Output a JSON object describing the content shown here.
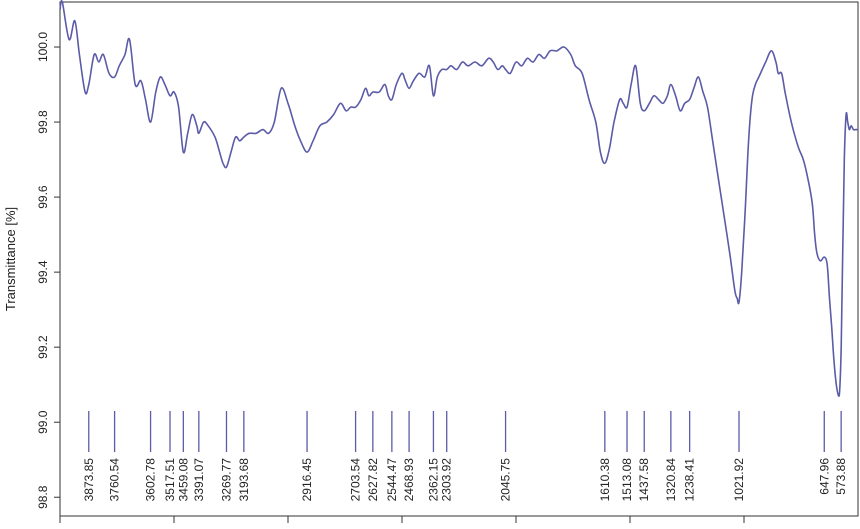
{
  "chart_data": {
    "type": "line",
    "ylabel": "Transmittance [%]",
    "xlabel": "",
    "x_reversed": true,
    "xlim": [
      4000,
      500
    ],
    "ylim": [
      98.75,
      100.12
    ],
    "y_ticks": [
      "98.8",
      "99.0",
      "99.2",
      "99.4",
      "99.6",
      "99.8",
      "100.0"
    ],
    "grid": false,
    "line_color": "#5b5ba8",
    "series": [
      {
        "x": [
          4000,
          3990,
          3960,
          3935,
          3915,
          3890,
          3873.85,
          3850,
          3830,
          3810,
          3785,
          3760.54,
          3740,
          3715,
          3695,
          3670,
          3645,
          3625,
          3602.78,
          3580,
          3560,
          3540,
          3517.51,
          3500,
          3480,
          3459.08,
          3440,
          3420,
          3400,
          3391.07,
          3370,
          3350,
          3320,
          3300,
          3285,
          3269.77,
          3250,
          3230,
          3212,
          3193.68,
          3170,
          3140,
          3110,
          3085,
          3060,
          3030,
          3000,
          2970,
          2945,
          2916.45,
          2890,
          2860,
          2830,
          2800,
          2770,
          2745,
          2725,
          2703.54,
          2680,
          2660,
          2645,
          2627.82,
          2600,
          2575,
          2560,
          2544.47,
          2525,
          2500,
          2485,
          2468.93,
          2450,
          2425,
          2400,
          2380,
          2362.15,
          2345,
          2325,
          2303.92,
          2285,
          2260,
          2235,
          2210,
          2180,
          2150,
          2120,
          2100,
          2080,
          2060,
          2045.75,
          2025,
          2000,
          1975,
          1950,
          1925,
          1900,
          1875,
          1850,
          1820,
          1790,
          1760,
          1740,
          1710,
          1680,
          1650,
          1630,
          1610.38,
          1590,
          1570,
          1545,
          1530,
          1513.08,
          1495,
          1475,
          1455,
          1437.58,
          1415,
          1395,
          1375,
          1355,
          1336,
          1320.84,
          1300,
          1280,
          1260,
          1238.41,
          1220,
          1200,
          1180,
          1160,
          1140,
          1120,
          1100,
          1080,
          1060,
          1040,
          1030,
          1021.92,
          1010,
          995,
          980,
          965,
          950,
          935,
          920,
          905,
          880,
          860,
          850,
          835,
          820,
          800,
          780,
          760,
          740,
          720,
          700,
          690,
          680,
          665,
          647.96,
          635,
          625,
          615,
          605,
          595,
          585,
          580,
          573.88,
          567,
          560,
          552,
          545,
          538,
          530,
          520,
          510,
          500
        ],
        "y": [
          100.1,
          100.12,
          100.02,
          100.07,
          99.98,
          99.88,
          99.9,
          99.98,
          99.96,
          99.98,
          99.93,
          99.92,
          99.95,
          99.98,
          100.02,
          99.9,
          99.91,
          99.86,
          99.8,
          99.88,
          99.92,
          99.9,
          99.87,
          99.88,
          99.84,
          99.72,
          99.77,
          99.82,
          99.79,
          99.77,
          99.8,
          99.79,
          99.76,
          99.72,
          99.69,
          99.68,
          99.72,
          99.76,
          99.75,
          99.76,
          99.77,
          99.77,
          99.78,
          99.77,
          99.8,
          99.89,
          99.85,
          99.79,
          99.75,
          99.72,
          99.75,
          99.79,
          99.8,
          99.82,
          99.85,
          99.83,
          99.84,
          99.84,
          99.86,
          99.89,
          99.87,
          99.88,
          99.88,
          99.9,
          99.87,
          99.86,
          99.9,
          99.93,
          99.91,
          99.89,
          99.91,
          99.93,
          99.92,
          99.95,
          99.87,
          99.92,
          99.94,
          99.94,
          99.95,
          99.94,
          99.96,
          99.95,
          99.96,
          99.95,
          99.97,
          99.96,
          99.94,
          99.95,
          99.94,
          99.93,
          99.96,
          99.95,
          99.97,
          99.96,
          99.98,
          99.97,
          99.99,
          99.99,
          100.0,
          99.98,
          99.95,
          99.93,
          99.86,
          99.8,
          99.72,
          99.69,
          99.73,
          99.8,
          99.86,
          99.85,
          99.84,
          99.9,
          99.95,
          99.85,
          99.83,
          99.85,
          99.87,
          99.86,
          99.85,
          99.87,
          99.9,
          99.87,
          99.83,
          99.85,
          99.86,
          99.89,
          99.92,
          99.88,
          99.84,
          99.76,
          99.68,
          99.6,
          99.52,
          99.44,
          99.35,
          99.33,
          99.32,
          99.4,
          99.56,
          99.75,
          99.86,
          99.9,
          99.92,
          99.94,
          99.96,
          99.99,
          99.96,
          99.93,
          99.93,
          99.88,
          99.82,
          99.77,
          99.73,
          99.7,
          99.65,
          99.58,
          99.5,
          99.45,
          99.43,
          99.44,
          99.42,
          99.33,
          99.25,
          99.16,
          99.1,
          99.07,
          99.09,
          99.2,
          99.45,
          99.7,
          99.82,
          99.8,
          99.78,
          99.79,
          99.78,
          99.78,
          99.78
        ]
      }
    ],
    "peak_labels": [
      "3873.85",
      "3760.54",
      "3602.78",
      "3517.51",
      "3459.08",
      "3391.07",
      "3269.77",
      "3193.68",
      "2916.45",
      "2703.54",
      "2627.82",
      "2544.47",
      "2468.93",
      "2362.15",
      "2303.92",
      "2045.75",
      "1610.38",
      "1513.08",
      "1437.58",
      "1320.84",
      "1238.41",
      "1021.92",
      "647.96",
      "573.88"
    ]
  }
}
